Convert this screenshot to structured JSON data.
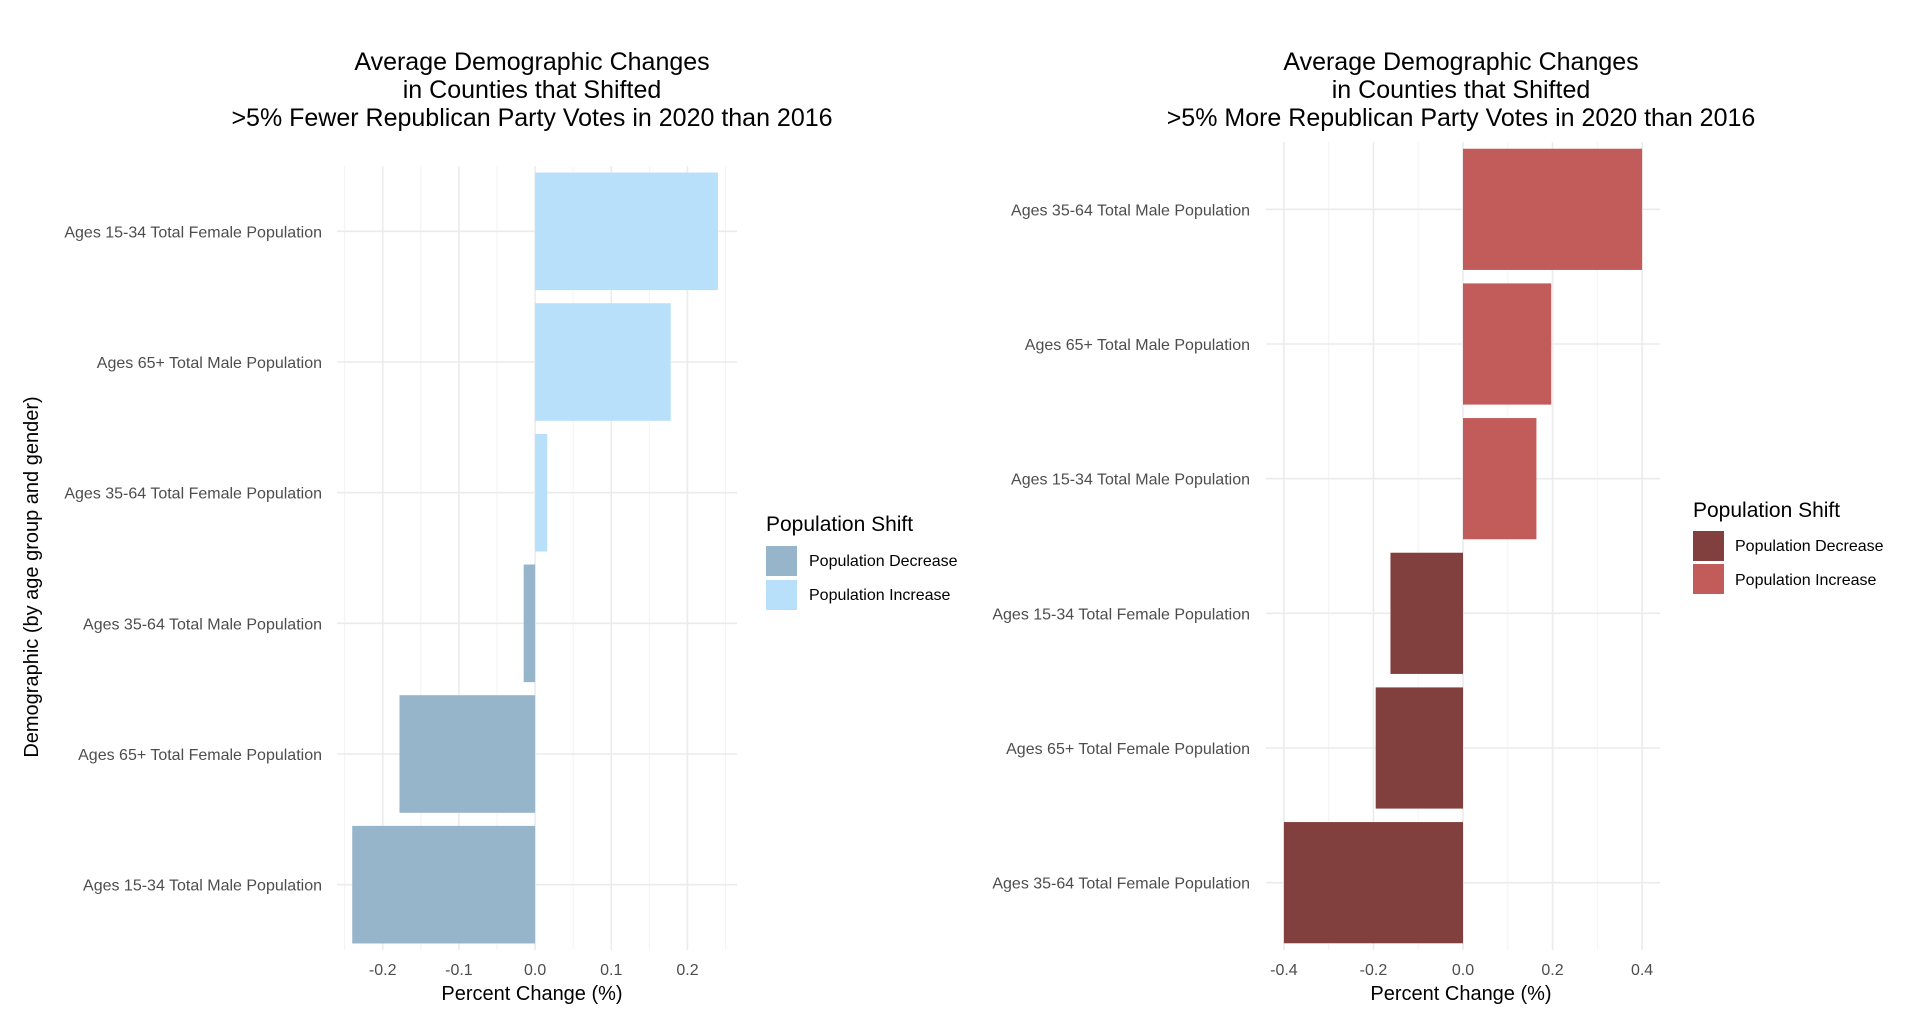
{
  "chart_data": [
    {
      "type": "bar",
      "orientation": "horizontal",
      "title": [
        "Average Demographic Changes",
        "in Counties that Shifted",
        ">5% Fewer Republican Party Votes in 2020 than 2016"
      ],
      "xlabel": "Percent Change (%)",
      "ylabel": "Demographic (by age group and gender)",
      "categories": [
        "Ages 15-34 Total Female Population",
        "Ages 65+ Total Male Population",
        "Ages 35-64 Total Female Population",
        "Ages 35-64 Total Male Population",
        "Ages 65+ Total Female Population",
        "Ages 15-34 Total Male Population"
      ],
      "values": [
        0.24,
        0.178,
        0.016,
        -0.015,
        -0.178,
        -0.24
      ],
      "xlim": [
        -0.26,
        0.265
      ],
      "xticks": [
        -0.2,
        -0.1,
        0.0,
        0.1,
        0.2
      ],
      "xtick_labels": [
        "-0.2",
        "-0.1",
        "0.0",
        "0.1",
        "0.2"
      ],
      "grid": true,
      "legend": {
        "title": "Population Shift",
        "position": "right",
        "entries": [
          {
            "label": "Population Decrease",
            "color": "#96b5cb"
          },
          {
            "label": "Population Increase",
            "color": "#b9e0fb"
          }
        ]
      }
    },
    {
      "type": "bar",
      "orientation": "horizontal",
      "title": [
        "Average Demographic Changes",
        "in Counties that Shifted",
        ">5% More Republican Party Votes in 2020 than 2016"
      ],
      "xlabel": "Percent Change (%)",
      "ylabel": "",
      "categories": [
        "Ages 35-64 Total Male Population",
        "Ages 65+ Total Male Population",
        "Ages 15-34 Total Male Population",
        "Ages 15-34 Total Female Population",
        "Ages 65+ Total Female Population",
        "Ages 35-64 Total Female Population"
      ],
      "values": [
        0.4,
        0.197,
        0.164,
        -0.162,
        -0.195,
        -0.4
      ],
      "xlim": [
        -0.44,
        0.44
      ],
      "xticks": [
        -0.4,
        -0.2,
        0.0,
        0.2,
        0.4
      ],
      "xtick_labels": [
        "-0.4",
        "-0.2",
        "0.0",
        "0.2",
        "0.4"
      ],
      "grid": true,
      "legend": {
        "title": "Population Shift",
        "position": "right",
        "entries": [
          {
            "label": "Population Decrease",
            "color": "#813f3e"
          },
          {
            "label": "Population Increase",
            "color": "#c15c5a"
          }
        ]
      }
    }
  ]
}
